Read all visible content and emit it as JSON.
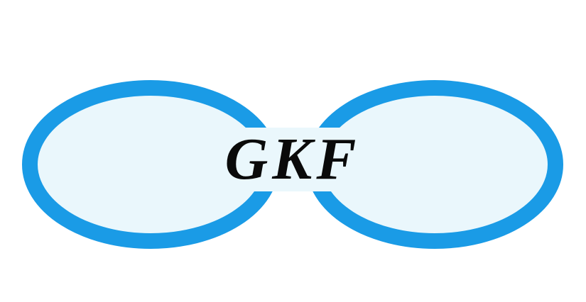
{
  "logo": {
    "text": "GKF",
    "ring_color": "#1a9be6",
    "fill_color": "#eaf7fc",
    "text_color": "#0a0a0a",
    "background_color": "#ffffff"
  }
}
